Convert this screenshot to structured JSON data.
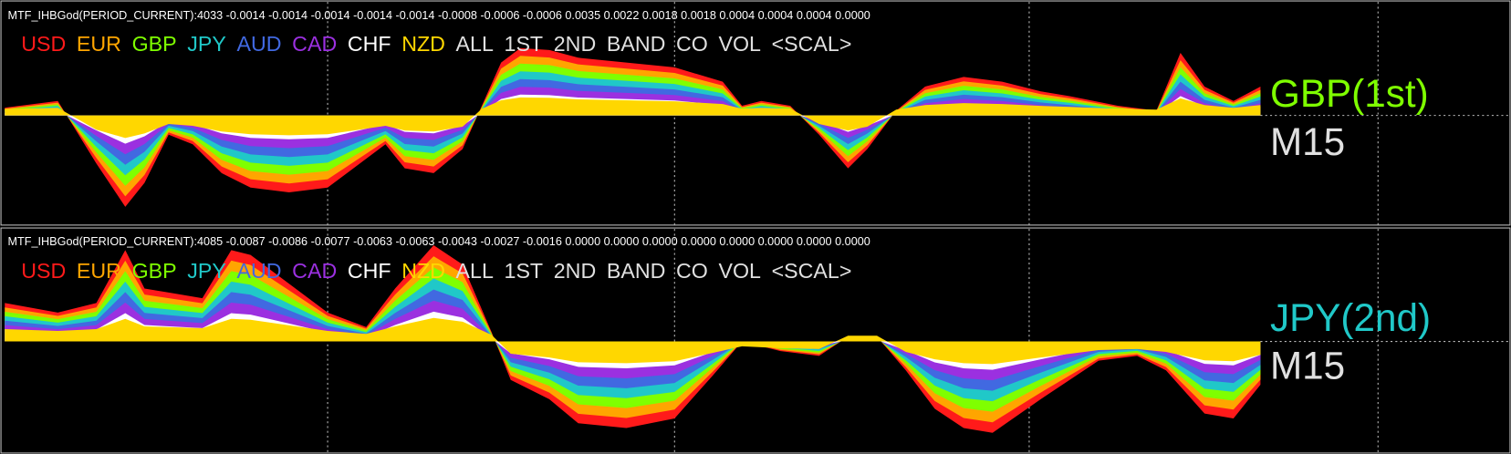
{
  "panels": [
    {
      "header": "MTF_IHBGod(PERIOD_CURRENT):4033 -0.0014 -0.0014 -0.0014 -0.0014 -0.0014 -0.0008 -0.0006 -0.0006 0.0035 0.0022 0.0018 0.0018 0.0004 0.0004 0.0004 0.0000",
      "legend": [
        {
          "text": "USD",
          "color": "#ff1a1a"
        },
        {
          "text": "EUR",
          "color": "#ffa500"
        },
        {
          "text": "GBP",
          "color": "#7fff00"
        },
        {
          "text": "JPY",
          "color": "#20c8c8"
        },
        {
          "text": "AUD",
          "color": "#4169e1"
        },
        {
          "text": "CAD",
          "color": "#9b30e0"
        },
        {
          "text": "CHF",
          "color": "#ffffff"
        },
        {
          "text": "NZD",
          "color": "#ffd700"
        },
        {
          "text": "ALL",
          "color": "#e0e0e0"
        },
        {
          "text": "1ST",
          "color": "#e0e0e0"
        },
        {
          "text": "2ND",
          "color": "#e0e0e0"
        },
        {
          "text": "BAND",
          "color": "#e0e0e0"
        },
        {
          "text": "CO",
          "color": "#e0e0e0"
        },
        {
          "text": "VOL",
          "color": "#e0e0e0"
        },
        {
          "text": "<SCAL>",
          "color": "#e0e0e0"
        }
      ],
      "pair_label": {
        "text": "GBP(1st)",
        "color": "#7fff00"
      },
      "timeframe": "M15"
    },
    {
      "header": "MTF_IHBGod(PERIOD_CURRENT):4085 -0.0087 -0.0086 -0.0077 -0.0063 -0.0063 -0.0043 -0.0027 -0.0016 0.0000 0.0000 0.0000 0.0000 0.0000 0.0000 0.0000 0.0000",
      "legend": [
        {
          "text": "USD",
          "color": "#ff1a1a"
        },
        {
          "text": "EUR",
          "color": "#ffa500"
        },
        {
          "text": "GBP",
          "color": "#7fff00"
        },
        {
          "text": "JPY",
          "color": "#20c8c8"
        },
        {
          "text": "AUD",
          "color": "#4169e1"
        },
        {
          "text": "CAD",
          "color": "#9b30e0"
        },
        {
          "text": "CHF",
          "color": "#ffffff"
        },
        {
          "text": "NZD",
          "color": "#ffd700"
        },
        {
          "text": "ALL",
          "color": "#e0e0e0"
        },
        {
          "text": "1ST",
          "color": "#e0e0e0"
        },
        {
          "text": "2ND",
          "color": "#e0e0e0"
        },
        {
          "text": "BAND",
          "color": "#e0e0e0"
        },
        {
          "text": "CO",
          "color": "#e0e0e0"
        },
        {
          "text": "VOL",
          "color": "#e0e0e0"
        },
        {
          "text": "<SCAL>",
          "color": "#e0e0e0"
        }
      ],
      "pair_label": {
        "text": "JPY(2nd)",
        "color": "#20c8c8"
      },
      "timeframe": "M15"
    }
  ]
}
